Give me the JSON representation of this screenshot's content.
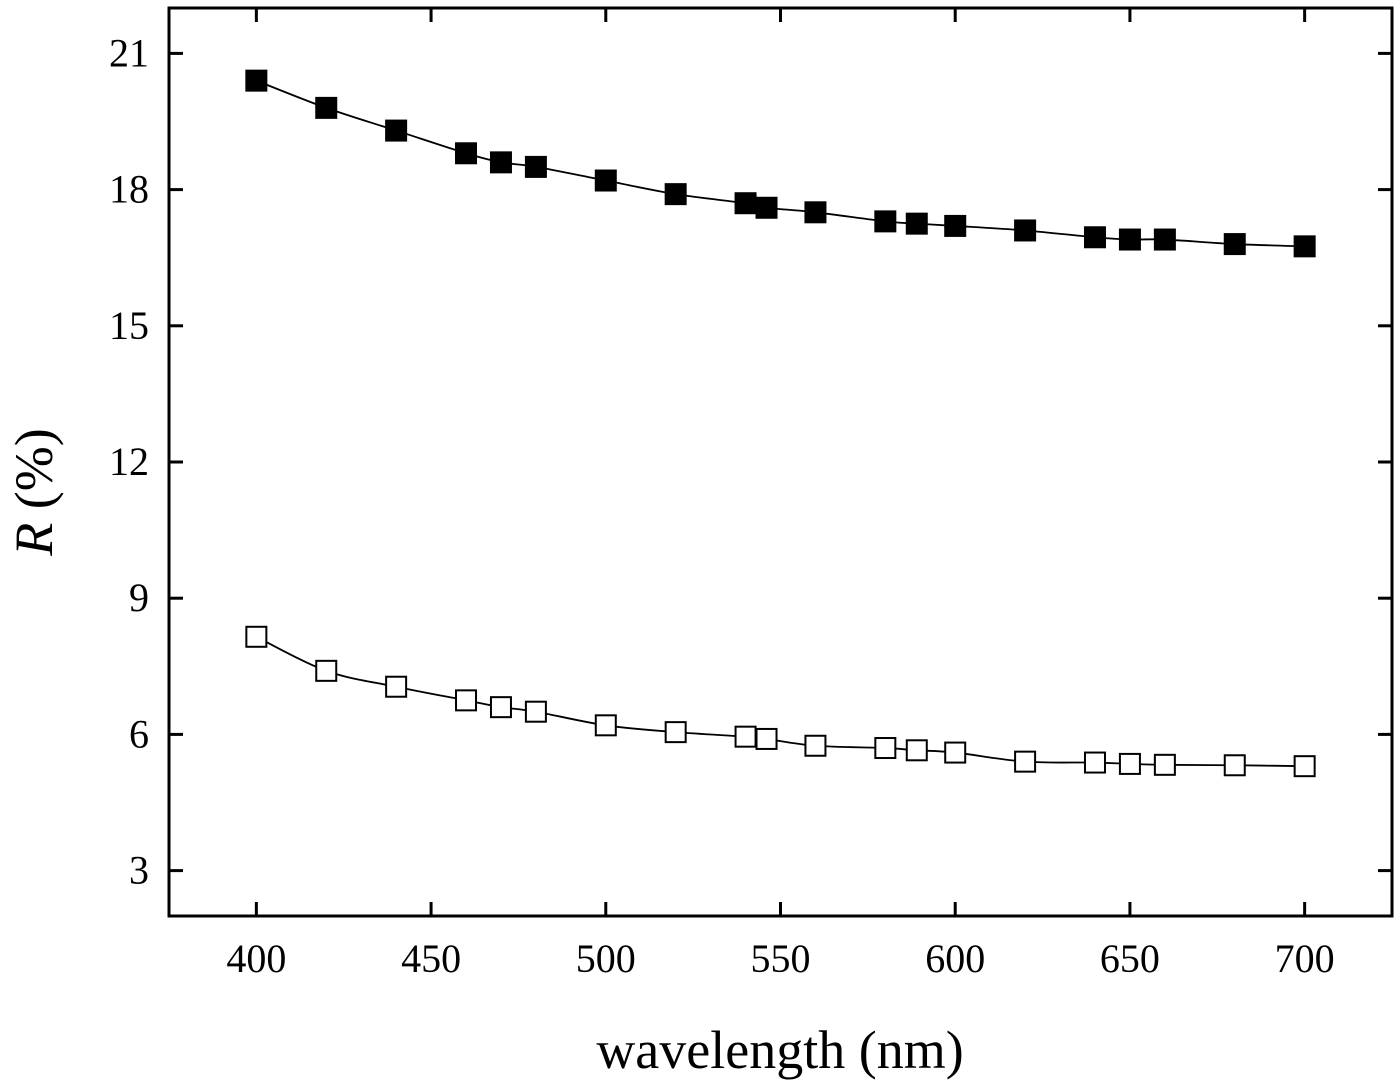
{
  "chart_data": {
    "type": "scatter",
    "xlabel": "wavelength (nm)",
    "ylabel_italic": "R",
    "ylabel_rest": " (%)",
    "xlim": [
      375,
      725
    ],
    "ylim": [
      2,
      22
    ],
    "xticks": [
      400,
      450,
      500,
      550,
      600,
      650,
      700
    ],
    "yticks": [
      3,
      6,
      9,
      12,
      15,
      18,
      21
    ],
    "grid": false,
    "legend": "none",
    "line_color": "#000000",
    "series": [
      {
        "marker": "filled-square",
        "x": [
          400,
          420,
          440,
          460,
          470,
          480,
          500,
          520,
          540,
          546,
          560,
          580,
          589,
          600,
          620,
          640,
          650,
          660,
          680,
          700
        ],
        "y": [
          20.4,
          19.8,
          19.3,
          18.8,
          18.6,
          18.5,
          18.2,
          17.9,
          17.7,
          17.6,
          17.5,
          17.3,
          17.25,
          17.2,
          17.1,
          16.95,
          16.9,
          16.9,
          16.8,
          16.75
        ]
      },
      {
        "marker": "open-square",
        "x": [
          400,
          420,
          440,
          460,
          470,
          480,
          500,
          520,
          540,
          546,
          560,
          580,
          589,
          600,
          620,
          640,
          650,
          660,
          680,
          700
        ],
        "y": [
          8.15,
          7.4,
          7.05,
          6.75,
          6.6,
          6.5,
          6.2,
          6.05,
          5.95,
          5.9,
          5.75,
          5.7,
          5.65,
          5.6,
          5.4,
          5.38,
          5.35,
          5.33,
          5.32,
          5.3
        ]
      }
    ]
  }
}
